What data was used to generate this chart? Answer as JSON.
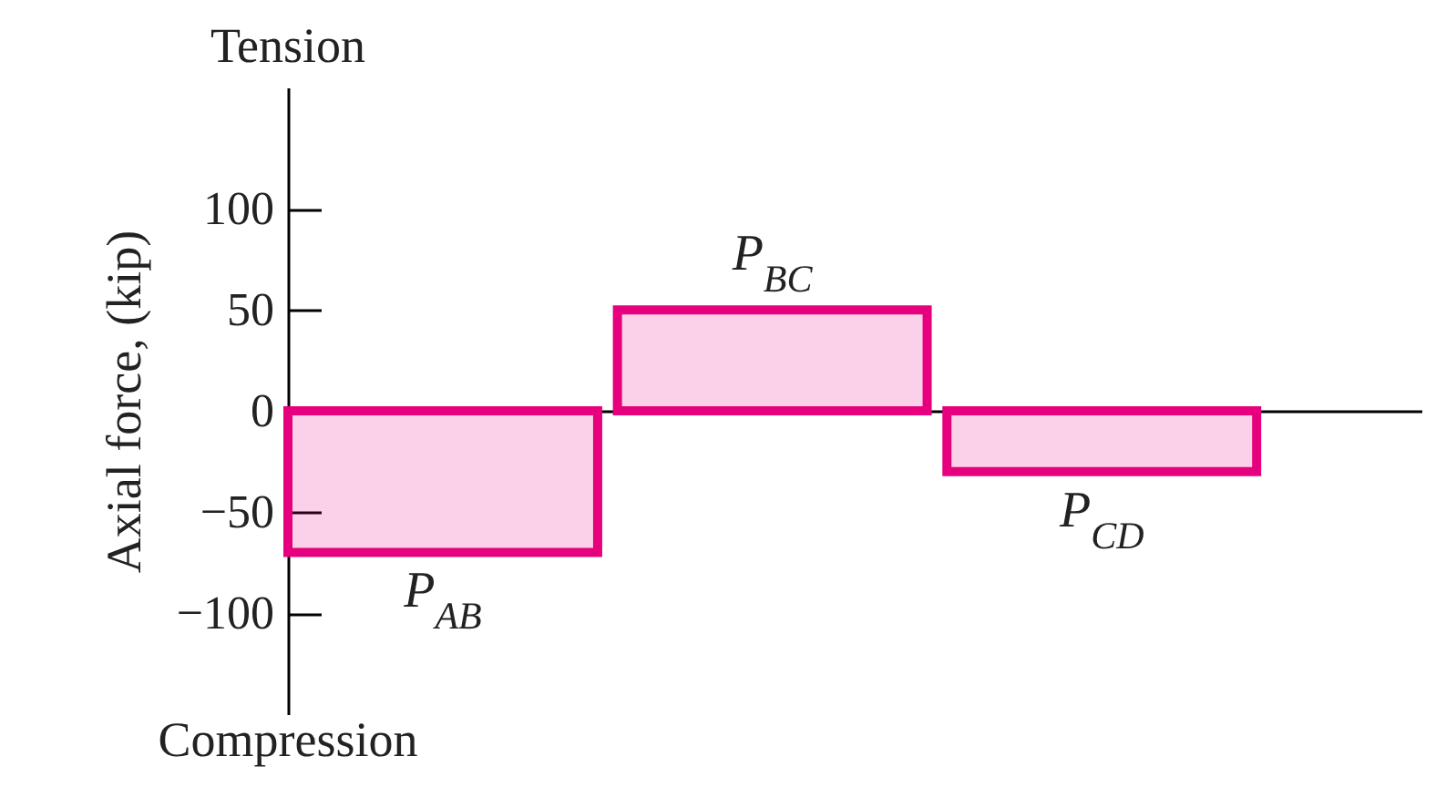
{
  "chart_data": {
    "type": "bar",
    "ylabel": "Axial force, (kip)",
    "categories": [
      "P$_{AB}$",
      "P$_{BC}$",
      "P$_{CD}$"
    ],
    "values": [
      -70,
      50,
      -30
    ],
    "color": "#e6007e",
    "ylim": [
      -150,
      160
    ],
    "yticks": [
      {
        "value": -100,
        "label": "−100"
      },
      {
        "value": -50,
        "label": "−50"
      },
      0,
      50,
      100
    ],
    "annotations": [
      "Tension",
      "Compression"
    ]
  }
}
